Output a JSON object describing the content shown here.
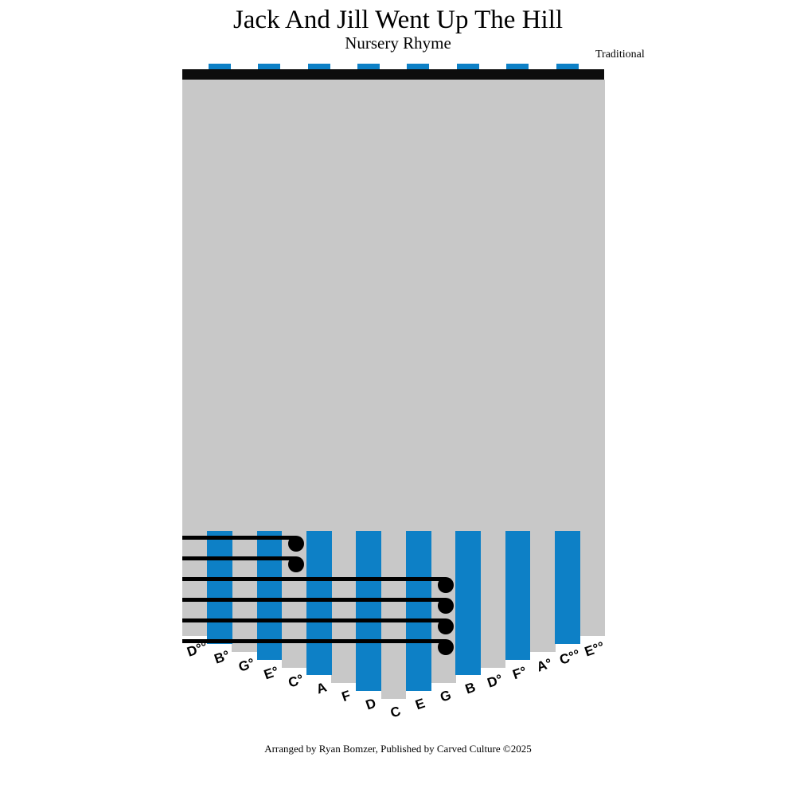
{
  "header": {
    "title": "Jack And Jill Went Up The Hill",
    "subtitle": "Nursery Rhyme",
    "attribution": "Traditional"
  },
  "footer": {
    "credit": "Arranged by Ryan Bomzer, Published by Carved Culture ©2025"
  },
  "colors": {
    "tine_blue": "#0d80c6",
    "body_gray": "#c8c8c8",
    "bridge_black": "#0d0d0d",
    "note_black": "#000000"
  },
  "kalimba": {
    "tines": [
      {
        "label": "D°°",
        "color": "gray"
      },
      {
        "label": "B°",
        "color": "blue"
      },
      {
        "label": "G°",
        "color": "gray"
      },
      {
        "label": "E°",
        "color": "blue"
      },
      {
        "label": "C°",
        "color": "gray"
      },
      {
        "label": "A",
        "color": "blue"
      },
      {
        "label": "F",
        "color": "gray"
      },
      {
        "label": "D",
        "color": "blue"
      },
      {
        "label": "C",
        "color": "gray"
      },
      {
        "label": "E",
        "color": "blue"
      },
      {
        "label": "G",
        "color": "gray"
      },
      {
        "label": "B",
        "color": "blue"
      },
      {
        "label": "D°",
        "color": "gray"
      },
      {
        "label": "F°",
        "color": "blue"
      },
      {
        "label": "A°",
        "color": "gray"
      },
      {
        "label": "C°°",
        "color": "blue"
      },
      {
        "label": "E°°",
        "color": "gray"
      }
    ],
    "notes_top_to_bottom": [
      {
        "tine": "C°"
      },
      {
        "tine": "C°"
      },
      {
        "tine": "G"
      },
      {
        "tine": "G"
      },
      {
        "tine": "G"
      },
      {
        "tine": "G"
      }
    ]
  }
}
